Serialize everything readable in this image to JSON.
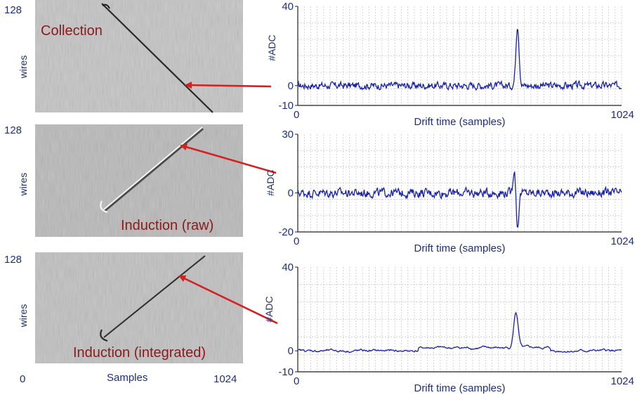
{
  "chart_data": [
    {
      "type": "image",
      "panel": "top-left",
      "label": "Collection",
      "ylabel": "wires",
      "y_tick_top": "128",
      "track": "dark"
    },
    {
      "type": "image",
      "panel": "middle-left",
      "label": "Induction (raw)",
      "ylabel": "wires",
      "y_tick_top": "128",
      "track": "bipolar"
    },
    {
      "type": "image",
      "panel": "bottom-left",
      "label": "Induction (integrated)",
      "ylabel": "wires",
      "y_tick_top": "128",
      "xlabel": "Samples",
      "x_tick_left": "0",
      "x_tick_right": "1024",
      "track": "dark"
    },
    {
      "type": "line",
      "panel": "top-right",
      "ylabel": "#ADC",
      "xlabel": "Drift time (samples)",
      "xlim": [
        0,
        1024
      ],
      "ylim": [
        -10,
        40
      ],
      "yticks": [
        40,
        0,
        -10
      ],
      "xtick_labels": [
        "0",
        "1024"
      ],
      "grid": true,
      "noise_amplitude": 2.8,
      "peak": {
        "x": 695,
        "y": 31,
        "shape": "unipolar"
      }
    },
    {
      "type": "line",
      "panel": "middle-right",
      "ylabel": "#ADC",
      "xlabel": "Drift time (samples)",
      "xlim": [
        0,
        1024
      ],
      "ylim": [
        -20,
        30
      ],
      "yticks": [
        30,
        0,
        -20
      ],
      "xtick_labels": [
        "0",
        "1024"
      ],
      "grid": true,
      "noise_amplitude": 3.5,
      "peak": {
        "x": 690,
        "y_max": 13,
        "y_min": -18,
        "shape": "bipolar"
      }
    },
    {
      "type": "line",
      "panel": "bottom-right",
      "ylabel": "#ADC",
      "xlabel": "Drift time (samples)",
      "xlim": [
        0,
        1024
      ],
      "ylim": [
        -10,
        40
      ],
      "yticks": [
        40,
        0,
        -10
      ],
      "xtick_labels": [
        "0",
        "1024"
      ],
      "grid": true,
      "noise_amplitude": 0.8,
      "peak": {
        "x": 690,
        "y": 17,
        "shape": "unipolar"
      }
    }
  ],
  "colors": {
    "trace": "#1a22a8",
    "arrow": "#d42020",
    "label_text": "#8b1a1a",
    "axis_text": "#1f2f7a",
    "grid": "#c9c9c9",
    "image_bg": "#c4c4c4"
  }
}
